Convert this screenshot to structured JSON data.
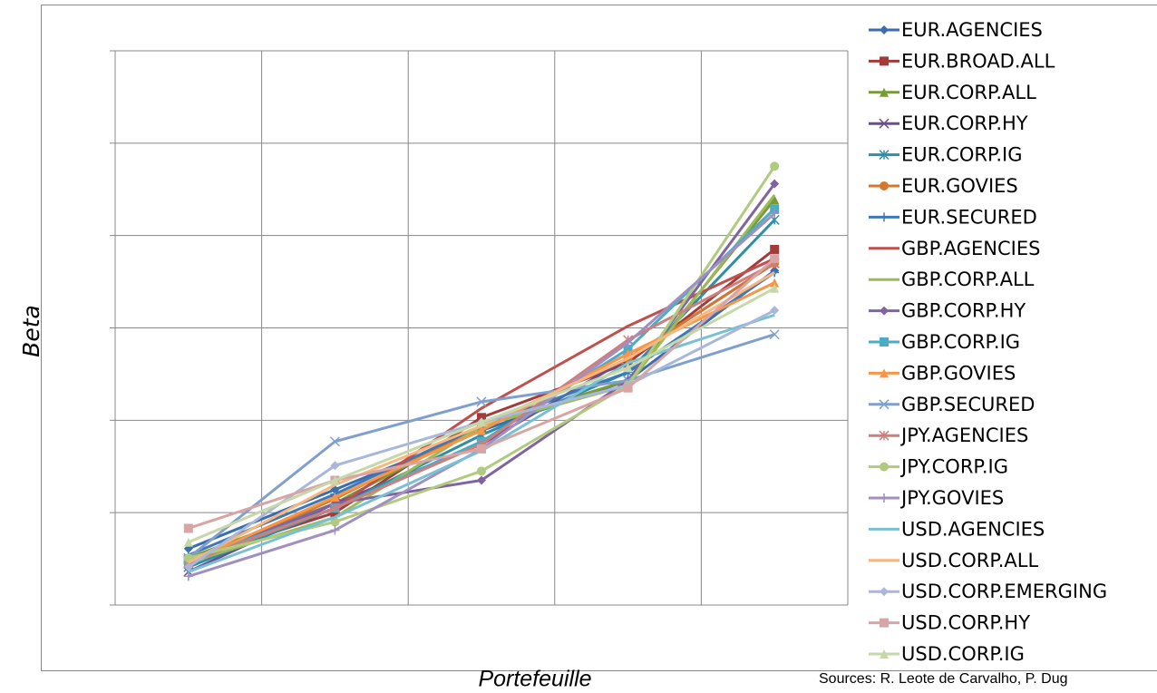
{
  "chart_data": {
    "type": "line",
    "y_label": "Beta",
    "x_label": "Portefeuille",
    "source": "Sources: R. Leote de Carvalho, P. Dug",
    "categories": [
      null,
      null,
      null,
      null,
      null
    ],
    "ylim": [
      0,
      6
    ],
    "yticks": [
      0,
      1,
      2,
      3,
      4,
      5,
      6
    ],
    "grid": true,
    "series": [
      {
        "name": "EUR.AGENCIES",
        "color": "#3b6cb0",
        "marker": "diamond",
        "values": [
          0.61,
          1.25,
          1.89,
          2.43,
          3.62
        ]
      },
      {
        "name": "EUR.BROAD.ALL",
        "color": "#a33b3b",
        "marker": "square",
        "values": [
          0.49,
          1.0,
          2.03,
          2.62,
          3.85
        ]
      },
      {
        "name": "EUR.CORP.ALL",
        "color": "#7a9a3a",
        "marker": "triangle",
        "values": [
          0.51,
          1.1,
          1.94,
          2.43,
          4.39
        ]
      },
      {
        "name": "EUR.CORP.HY",
        "color": "#6a4f8c",
        "marker": "x",
        "values": [
          0.36,
          1.1,
          1.74,
          2.67,
          3.7
        ]
      },
      {
        "name": "EUR.CORP.IG",
        "color": "#2e8fa6",
        "marker": "star",
        "values": [
          0.41,
          1.05,
          1.84,
          2.52,
          4.17
        ]
      },
      {
        "name": "EUR.GOVIES",
        "color": "#d6772f",
        "marker": "circle",
        "values": [
          0.44,
          1.15,
          1.94,
          2.67,
          3.7
        ]
      },
      {
        "name": "EUR.SECURED",
        "color": "#3f78b8",
        "marker": "plus",
        "values": [
          0.54,
          1.2,
          1.94,
          2.52,
          3.6
        ]
      },
      {
        "name": "GBP.AGENCIES",
        "color": "#c0504d",
        "marker": "none",
        "values": [
          0.48,
          1.05,
          2.13,
          3.02,
          3.75
        ]
      },
      {
        "name": "GBP.CORP.ALL",
        "color": "#9bbb59",
        "marker": "none",
        "values": [
          0.46,
          0.95,
          1.94,
          2.38,
          4.44
        ]
      },
      {
        "name": "GBP.CORP.HY",
        "color": "#8064a2",
        "marker": "diamond",
        "values": [
          0.46,
          1.1,
          1.35,
          2.43,
          4.56
        ]
      },
      {
        "name": "GBP.CORP.IG",
        "color": "#4bacc6",
        "marker": "square",
        "values": [
          0.48,
          1.05,
          1.77,
          2.77,
          4.29
        ]
      },
      {
        "name": "GBP.GOVIES",
        "color": "#f79646",
        "marker": "triangle",
        "values": [
          0.46,
          1.17,
          1.89,
          2.72,
          3.49
        ]
      },
      {
        "name": "GBP.SECURED",
        "color": "#7f9fcf",
        "marker": "x",
        "values": [
          0.51,
          1.77,
          2.2,
          2.43,
          2.93
        ]
      },
      {
        "name": "JPY.AGENCIES",
        "color": "#cd7f7d",
        "marker": "star",
        "values": [
          0.46,
          1.05,
          1.74,
          2.87,
          3.7
        ]
      },
      {
        "name": "JPY.CORP.IG",
        "color": "#b0cb7f",
        "marker": "circle",
        "values": [
          0.51,
          0.9,
          1.45,
          2.38,
          4.75
        ]
      },
      {
        "name": "JPY.GOVIES",
        "color": "#a08fc0",
        "marker": "plus",
        "values": [
          0.31,
          0.81,
          1.69,
          2.84,
          4.24
        ]
      },
      {
        "name": "USD.AGENCIES",
        "color": "#78c0d4",
        "marker": "none",
        "values": [
          0.36,
          0.95,
          1.67,
          2.62,
          3.14
        ]
      },
      {
        "name": "USD.CORP.ALL",
        "color": "#f9b67f",
        "marker": "none",
        "values": [
          0.46,
          1.3,
          1.94,
          2.67,
          3.6
        ]
      },
      {
        "name": "USD.CORP.EMERGING",
        "color": "#a9b8d9",
        "marker": "diamond",
        "values": [
          0.41,
          1.51,
          1.98,
          2.38,
          3.19
        ]
      },
      {
        "name": "USD.CORP.HY",
        "color": "#d9a5a4",
        "marker": "square",
        "values": [
          0.83,
          1.35,
          1.69,
          2.35,
          3.75
        ]
      },
      {
        "name": "USD.CORP.IG",
        "color": "#c5d9a8",
        "marker": "triangle",
        "values": [
          0.68,
          1.35,
          1.98,
          2.57,
          3.43
        ]
      }
    ]
  }
}
